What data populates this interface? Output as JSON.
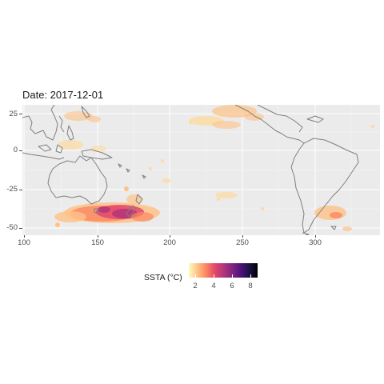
{
  "title": "Date: 2017-12-01",
  "axes": {
    "y_ticks": [
      "25",
      "0",
      "-25",
      "-50"
    ],
    "x_ticks": [
      "100",
      "150",
      "200",
      "250",
      "300"
    ]
  },
  "legend": {
    "title": "SSTA (°C)",
    "ticks": [
      "2",
      "4",
      "6",
      "8"
    ],
    "range": [
      0.5,
      9
    ],
    "palette": [
      "#fcfdbf",
      "#fec287",
      "#fb8761",
      "#e3486c",
      "#b5367a",
      "#822681",
      "#51127c",
      "#1d1147",
      "#000004"
    ]
  },
  "map": {
    "lon_range": [
      95,
      340
    ],
    "lat_range": [
      -57,
      32
    ],
    "background": "#ebebeb",
    "coastline_color": "#7f7f7f",
    "anomaly_regions": [
      {
        "name": "tasman-sea",
        "lon": [
          125,
          185
        ],
        "lat": [
          -52,
          -37
        ],
        "peak": 7.5
      },
      {
        "name": "southern-indian",
        "lon": [
          120,
          150
        ],
        "lat": [
          -50,
          -38
        ],
        "peak": 4
      },
      {
        "name": "north-pacific-east",
        "lon": [
          220,
          270
        ],
        "lat": [
          10,
          30
        ],
        "peak": 2.5
      },
      {
        "name": "south-atlantic",
        "lon": [
          305,
          330
        ],
        "lat": [
          -50,
          -38
        ],
        "peak": 3.5
      },
      {
        "name": "west-pacific",
        "lon": [
          115,
          140
        ],
        "lat": [
          5,
          28
        ],
        "peak": 2
      }
    ]
  }
}
